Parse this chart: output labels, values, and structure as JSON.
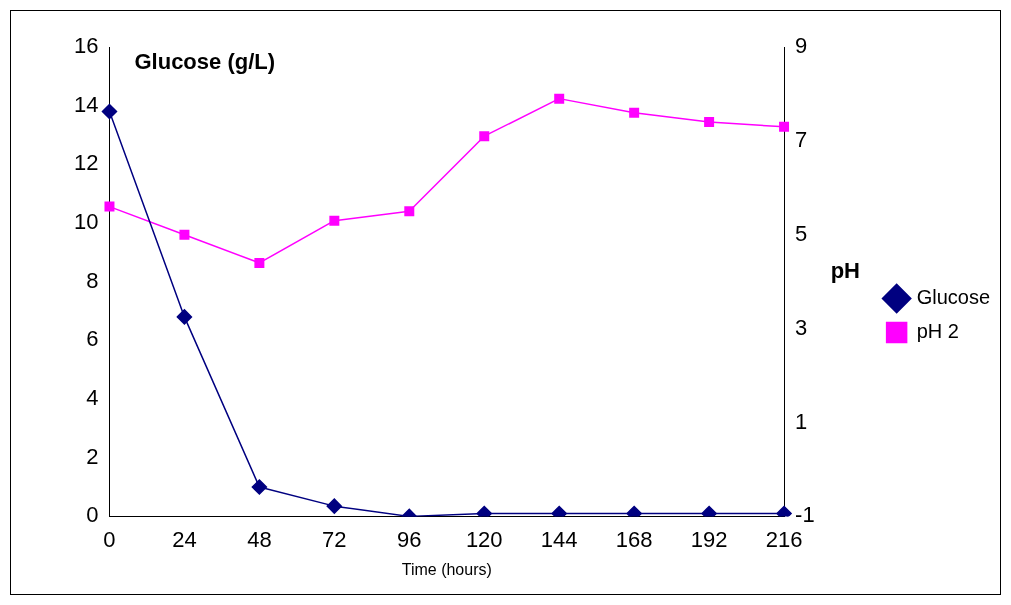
{
  "chart_data": {
    "type": "line",
    "xlabel": "Time (hours)",
    "ylabel": "Glucose (g/L)",
    "y2label": "pH",
    "categories": [
      "0",
      "24",
      "48",
      "72",
      "96",
      "120",
      "144",
      "168",
      "192",
      "216"
    ],
    "series": [
      {
        "name": "Glucose",
        "color": "#000080",
        "marker": "diamond",
        "values": [
          13.8,
          6.8,
          1.0,
          0.35,
          0,
          0.1,
          0.1,
          0.1,
          0.1,
          0.1
        ]
      },
      {
        "name": "pH 2",
        "color": "#ff00ff",
        "marker": "square",
        "axis": "y2",
        "values": [
          5.6,
          5.0,
          4.4,
          5.3,
          5.5,
          7.1,
          7.9,
          7.6,
          7.4,
          7.3
        ]
      }
    ],
    "ylim": [
      0,
      16
    ],
    "yticks": [
      0,
      2,
      4,
      6,
      8,
      10,
      12,
      14,
      16
    ],
    "y2lim": [
      -1,
      9
    ],
    "y2ticks": [
      -1,
      1,
      3,
      5,
      7,
      9
    ],
    "grid": false,
    "legend": "right"
  }
}
